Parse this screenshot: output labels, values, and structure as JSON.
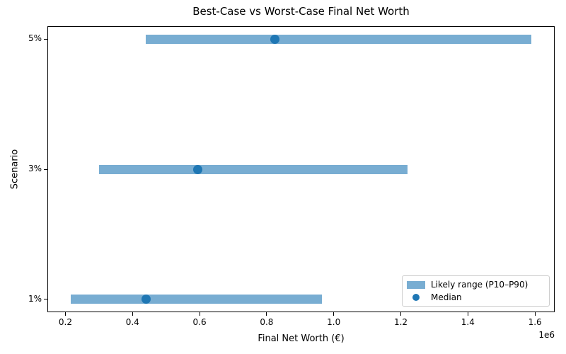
{
  "figure": {
    "background": "#ffffff"
  },
  "chart_data": {
    "type": "bar",
    "subtype": "horizontal-range",
    "title": "Best-Case vs Worst-Case Final Net Worth",
    "xlabel": "Final Net Worth (€)",
    "ylabel": "Scenario",
    "categories": [
      "1%",
      "3%",
      "5%"
    ],
    "series": [
      {
        "name": "Likely range (P10–P90)",
        "role": "range",
        "p10": [
          215000,
          300000,
          440000
        ],
        "p90": [
          965000,
          1220000,
          1590000
        ]
      },
      {
        "name": "Median",
        "role": "point",
        "values": [
          440000,
          595000,
          825000
        ]
      }
    ],
    "xlim": [
      146250,
      1658750
    ],
    "ylim": [
      -0.1,
      2.1
    ],
    "xticks": [
      200000,
      400000,
      600000,
      800000,
      1000000,
      1200000,
      1400000,
      1600000
    ],
    "xtick_labels": [
      "0.2",
      "0.4",
      "0.6",
      "0.8",
      "1.0",
      "1.2",
      "1.4",
      "1.6"
    ],
    "axis_offset_text": "1e6",
    "grid": false,
    "legend_position": "lower right",
    "colors": {
      "range": "#78ADD2",
      "median": "#1F77B4",
      "axis": "#000000",
      "legend_border": "#CCCCCC"
    }
  }
}
